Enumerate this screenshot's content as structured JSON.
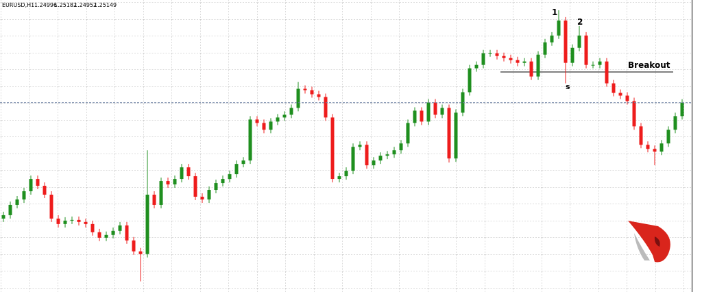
{
  "chart_data": {
    "type": "candlestick",
    "title": "EURUSD,H1",
    "quote": {
      "open": 1.24996,
      "high": 1.25182,
      "low": 1.24952,
      "close": 1.25149
    },
    "annotations": [
      "1",
      "2",
      "s",
      "Breakout"
    ],
    "ylim": [
      1.2404,
      1.2575
    ],
    "up_color": "#1f8f1f",
    "down_color": "#ee1c1c",
    "open": [
      1.2447,
      1.2449,
      1.2455,
      1.24582,
      1.2463,
      1.24702,
      1.24662,
      1.2461,
      1.2447,
      1.24438,
      1.24458,
      1.24462,
      1.2445,
      1.24438,
      1.2439,
      1.24358,
      1.24374,
      1.24398,
      1.2443,
      1.24342,
      1.24278,
      1.24262,
      1.2461,
      1.2455,
      1.2469,
      1.2467,
      1.24702,
      1.2477,
      1.24718,
      1.24598,
      1.24582,
      1.24638,
      1.24678,
      1.24702,
      1.2473,
      1.2479,
      1.2481,
      1.2505,
      1.2503,
      1.2499,
      1.25038,
      1.25062,
      1.25078,
      1.25118,
      1.2523,
      1.25222,
      1.25198,
      1.25182,
      1.25062,
      1.24702,
      1.24718,
      1.2475,
      1.2489,
      1.24902,
      1.24782,
      1.2481,
      1.24838,
      1.24846,
      1.2487,
      1.2491,
      1.2503,
      1.25102,
      1.25038,
      1.2515,
      1.25078,
      1.25118,
      1.24822,
      1.2509,
      1.2521,
      1.2535,
      1.2537,
      1.25438,
      1.25438,
      1.25422,
      1.2541,
      1.25398,
      1.25382,
      1.2539,
      1.25302,
      1.2543,
      1.25502,
      1.25542,
      1.2563,
      1.25382,
      1.2547,
      1.25542,
      1.2537,
      1.2537,
      1.2539,
      1.25262,
      1.25206,
      1.2519,
      1.25158,
      1.2501,
      1.24902,
      1.24878,
      1.24862,
      1.2491,
      1.2499,
      1.2507
    ],
    "high": [
      1.2451,
      1.2457,
      1.24602,
      1.2465,
      1.24722,
      1.24722,
      1.24682,
      1.2463,
      1.2449,
      1.24478,
      1.24482,
      1.24482,
      1.2447,
      1.24458,
      1.2441,
      1.24394,
      1.24418,
      1.2445,
      1.2445,
      1.24362,
      1.24298,
      1.2487,
      1.2463,
      1.2471,
      1.2471,
      1.24722,
      1.2479,
      1.2479,
      1.24738,
      1.24618,
      1.24658,
      1.24698,
      1.24722,
      1.2475,
      1.2481,
      1.2483,
      1.2507,
      1.2507,
      1.2505,
      1.25058,
      1.25082,
      1.25098,
      1.25138,
      1.2527,
      1.2525,
      1.25242,
      1.25218,
      1.25202,
      1.25082,
      1.24738,
      1.2477,
      1.2491,
      1.24922,
      1.24922,
      1.2483,
      1.24858,
      1.24866,
      1.2489,
      1.2493,
      1.2505,
      1.25122,
      1.25122,
      1.2517,
      1.2517,
      1.25138,
      1.25138,
      1.2511,
      1.2523,
      1.2537,
      1.2539,
      1.25458,
      1.25458,
      1.25458,
      1.25442,
      1.2543,
      1.25418,
      1.2541,
      1.2541,
      1.2545,
      1.25522,
      1.25562,
      1.2569,
      1.2565,
      1.2549,
      1.25598,
      1.25562,
      1.2539,
      1.2541,
      1.2541,
      1.25282,
      1.25226,
      1.2521,
      1.25178,
      1.2503,
      1.24922,
      1.24898,
      1.2493,
      1.2501,
      1.2509,
      1.25169
    ],
    "low": [
      1.2445,
      1.2447,
      1.2453,
      1.24562,
      1.2461,
      1.24642,
      1.2459,
      1.2445,
      1.24418,
      1.24418,
      1.24438,
      1.2443,
      1.24418,
      1.2437,
      1.24338,
      1.24338,
      1.24354,
      1.24378,
      1.24322,
      1.24258,
      1.24102,
      1.24242,
      1.2453,
      1.2453,
      1.2465,
      1.2465,
      1.24682,
      1.24698,
      1.24578,
      1.24562,
      1.24562,
      1.24618,
      1.24658,
      1.24682,
      1.2471,
      1.2477,
      1.2479,
      1.2501,
      1.2497,
      1.2497,
      1.25018,
      1.25042,
      1.25058,
      1.25098,
      1.25202,
      1.25178,
      1.25162,
      1.25042,
      1.24682,
      1.24682,
      1.24698,
      1.2473,
      1.2487,
      1.24762,
      1.24762,
      1.2479,
      1.24818,
      1.24826,
      1.2485,
      1.2489,
      1.2501,
      1.25018,
      1.25018,
      1.25058,
      1.25058,
      1.24798,
      1.24802,
      1.2507,
      1.2519,
      1.2533,
      1.2535,
      1.25418,
      1.25402,
      1.2539,
      1.25378,
      1.25362,
      1.25362,
      1.25282,
      1.25282,
      1.2541,
      1.25482,
      1.25522,
      1.25262,
      1.25362,
      1.2545,
      1.2535,
      1.2535,
      1.2535,
      1.25242,
      1.25186,
      1.2517,
      1.25138,
      1.2499,
      1.24882,
      1.24858,
      1.24782,
      1.24842,
      1.2489,
      1.2497,
      1.2505
    ],
    "close": [
      1.2449,
      1.2455,
      1.24582,
      1.2463,
      1.24702,
      1.24662,
      1.2461,
      1.2447,
      1.24438,
      1.24458,
      1.24462,
      1.2445,
      1.24438,
      1.2439,
      1.24358,
      1.24374,
      1.24398,
      1.2443,
      1.24342,
      1.24278,
      1.24262,
      1.2461,
      1.2455,
      1.2469,
      1.2467,
      1.24702,
      1.2477,
      1.24718,
      1.24598,
      1.24582,
      1.24638,
      1.24678,
      1.24702,
      1.2473,
      1.2479,
      1.2481,
      1.2505,
      1.2503,
      1.2499,
      1.25038,
      1.25062,
      1.25078,
      1.25118,
      1.2523,
      1.25222,
      1.25198,
      1.25182,
      1.25062,
      1.24702,
      1.24718,
      1.2475,
      1.2489,
      1.24902,
      1.24782,
      1.2481,
      1.24838,
      1.24846,
      1.2487,
      1.2491,
      1.2503,
      1.25102,
      1.25038,
      1.2515,
      1.25078,
      1.25118,
      1.24822,
      1.2509,
      1.2521,
      1.2535,
      1.2537,
      1.25438,
      1.25438,
      1.25422,
      1.2541,
      1.25398,
      1.25382,
      1.2539,
      1.25302,
      1.2543,
      1.25502,
      1.25542,
      1.2563,
      1.25382,
      1.2547,
      1.25542,
      1.2537,
      1.2537,
      1.2539,
      1.25262,
      1.25206,
      1.2519,
      1.25158,
      1.2501,
      1.24902,
      1.24878,
      1.24862,
      1.2491,
      1.2499,
      1.2507,
      1.25149
    ]
  }
}
